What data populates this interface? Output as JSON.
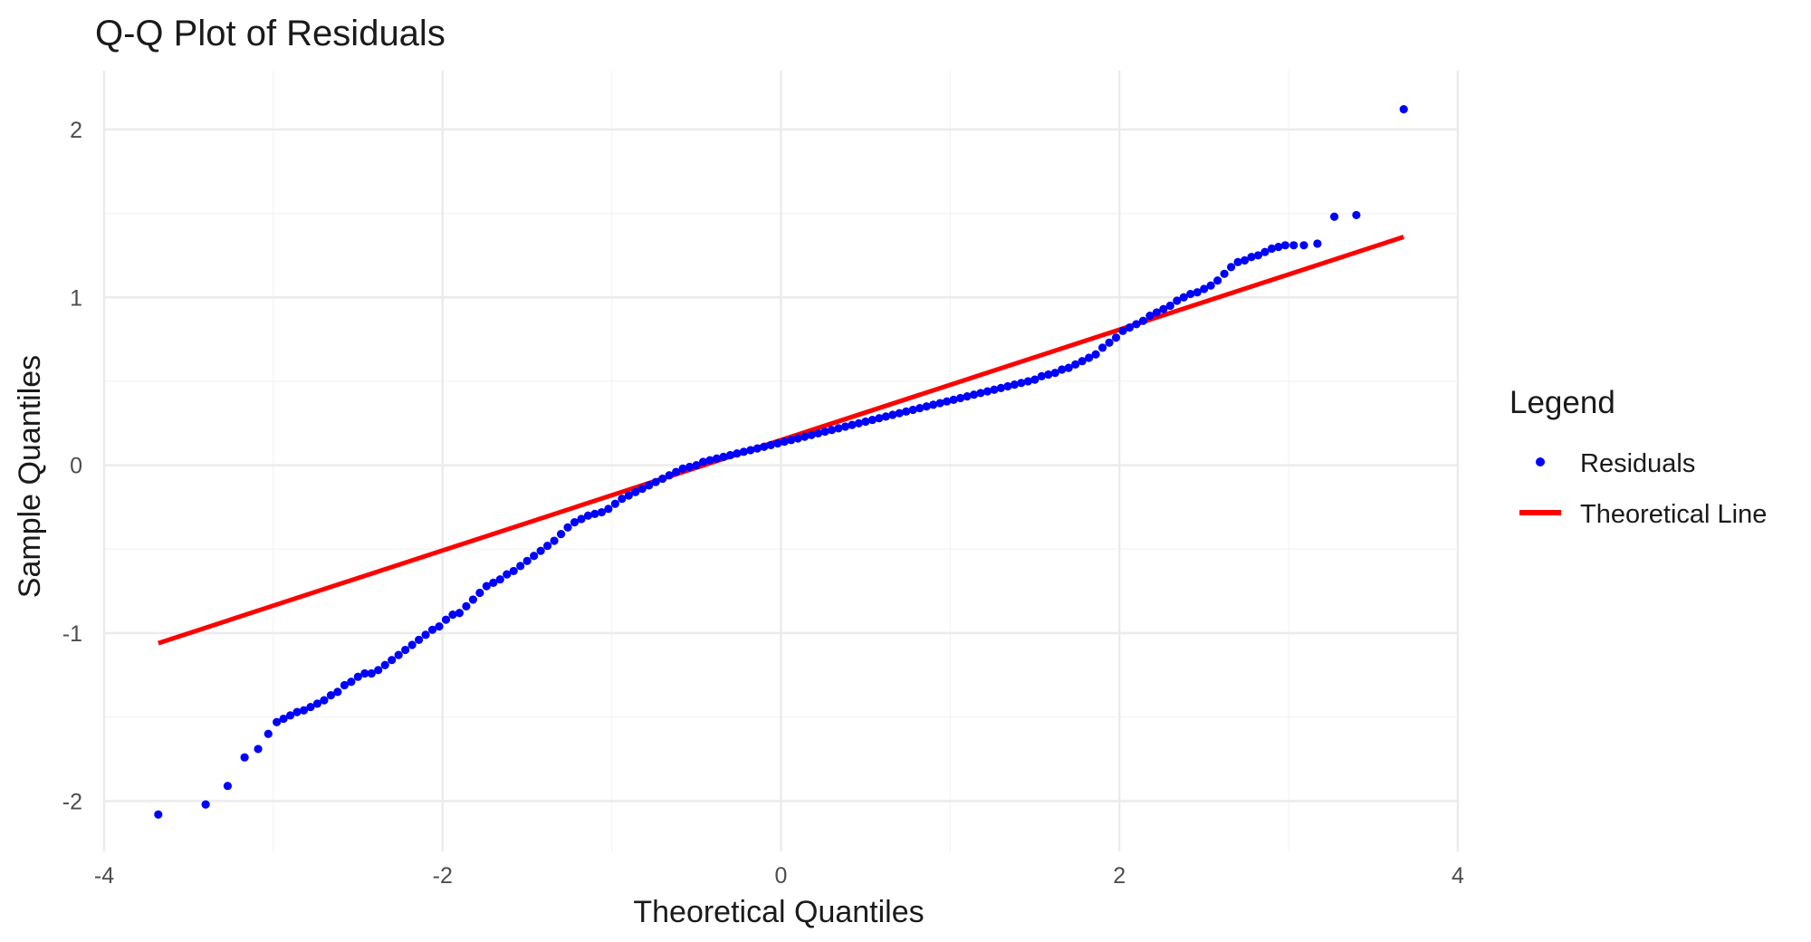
{
  "chart_data": {
    "type": "scatter",
    "title": "Q-Q Plot of Residuals",
    "xlabel": "Theoretical Quantiles",
    "ylabel": "Sample Quantiles",
    "xlim": [
      -4,
      4
    ],
    "ylim": [
      -2.3,
      2.35
    ],
    "x_ticks": [
      -4,
      -2,
      0,
      2,
      4
    ],
    "y_ticks": [
      -2,
      -1,
      0,
      1,
      2
    ],
    "x_tick_labels": [
      "-4",
      "-2",
      "0",
      "2",
      "4"
    ],
    "y_tick_labels": [
      "-2",
      "-1",
      "0",
      "1",
      "2"
    ],
    "grid": true,
    "legend": {
      "title": "Legend",
      "position": "right",
      "entries": [
        {
          "label": "Residuals",
          "kind": "point",
          "color": "#0000ff"
        },
        {
          "label": "Theoretical Line",
          "kind": "line",
          "color": "#ff0000"
        }
      ]
    },
    "series": [
      {
        "name": "Residuals",
        "kind": "points",
        "color": "#0000ff",
        "points": [
          [
            -3.68,
            -2.08
          ],
          [
            -3.4,
            -2.02
          ],
          [
            -3.27,
            -1.91
          ],
          [
            -3.17,
            -1.74
          ],
          [
            -3.09,
            -1.69
          ],
          [
            -3.03,
            -1.6
          ],
          [
            -2.98,
            -1.53
          ],
          [
            -2.94,
            -1.51
          ],
          [
            -2.9,
            -1.49
          ],
          [
            -2.86,
            -1.47
          ],
          [
            -2.82,
            -1.46
          ],
          [
            -2.78,
            -1.44
          ],
          [
            -2.74,
            -1.42
          ],
          [
            -2.7,
            -1.4
          ],
          [
            -2.66,
            -1.37
          ],
          [
            -2.62,
            -1.35
          ],
          [
            -2.58,
            -1.31
          ],
          [
            -2.54,
            -1.29
          ],
          [
            -2.5,
            -1.26
          ],
          [
            -2.46,
            -1.24
          ],
          [
            -2.42,
            -1.24
          ],
          [
            -2.38,
            -1.22
          ],
          [
            -2.34,
            -1.19
          ],
          [
            -2.3,
            -1.16
          ],
          [
            -2.26,
            -1.13
          ],
          [
            -2.22,
            -1.1
          ],
          [
            -2.18,
            -1.07
          ],
          [
            -2.14,
            -1.04
          ],
          [
            -2.1,
            -1.01
          ],
          [
            -2.06,
            -0.98
          ],
          [
            -2.02,
            -0.96
          ],
          [
            -1.98,
            -0.92
          ],
          [
            -1.94,
            -0.89
          ],
          [
            -1.9,
            -0.88
          ],
          [
            -1.86,
            -0.84
          ],
          [
            -1.82,
            -0.8
          ],
          [
            -1.78,
            -0.76
          ],
          [
            -1.74,
            -0.72
          ],
          [
            -1.7,
            -0.7
          ],
          [
            -1.66,
            -0.68
          ],
          [
            -1.62,
            -0.65
          ],
          [
            -1.58,
            -0.63
          ],
          [
            -1.54,
            -0.6
          ],
          [
            -1.5,
            -0.57
          ],
          [
            -1.46,
            -0.54
          ],
          [
            -1.42,
            -0.51
          ],
          [
            -1.38,
            -0.48
          ],
          [
            -1.34,
            -0.45
          ],
          [
            -1.3,
            -0.41
          ],
          [
            -1.26,
            -0.37
          ],
          [
            -1.22,
            -0.34
          ],
          [
            -1.18,
            -0.32
          ],
          [
            -1.14,
            -0.3
          ],
          [
            -1.1,
            -0.29
          ],
          [
            -1.06,
            -0.28
          ],
          [
            -1.02,
            -0.26
          ],
          [
            -0.98,
            -0.23
          ],
          [
            -0.94,
            -0.2
          ],
          [
            -0.9,
            -0.18
          ],
          [
            -0.86,
            -0.16
          ],
          [
            -0.82,
            -0.14
          ],
          [
            -0.78,
            -0.12
          ],
          [
            -0.74,
            -0.1
          ],
          [
            -0.7,
            -0.08
          ],
          [
            -0.66,
            -0.06
          ],
          [
            -0.62,
            -0.04
          ],
          [
            -0.58,
            -0.02
          ],
          [
            -0.54,
            -0.01
          ],
          [
            -0.5,
            0.0
          ],
          [
            -0.46,
            0.02
          ],
          [
            -0.42,
            0.03
          ],
          [
            -0.38,
            0.04
          ],
          [
            -0.34,
            0.05
          ],
          [
            -0.3,
            0.06
          ],
          [
            -0.26,
            0.07
          ],
          [
            -0.22,
            0.08
          ],
          [
            -0.18,
            0.09
          ],
          [
            -0.14,
            0.1
          ],
          [
            -0.1,
            0.11
          ],
          [
            -0.06,
            0.12
          ],
          [
            -0.02,
            0.13
          ],
          [
            0.02,
            0.14
          ],
          [
            0.06,
            0.15
          ],
          [
            0.1,
            0.16
          ],
          [
            0.14,
            0.17
          ],
          [
            0.18,
            0.18
          ],
          [
            0.22,
            0.19
          ],
          [
            0.26,
            0.2
          ],
          [
            0.3,
            0.21
          ],
          [
            0.34,
            0.22
          ],
          [
            0.38,
            0.23
          ],
          [
            0.42,
            0.24
          ],
          [
            0.46,
            0.25
          ],
          [
            0.5,
            0.26
          ],
          [
            0.54,
            0.27
          ],
          [
            0.58,
            0.28
          ],
          [
            0.62,
            0.29
          ],
          [
            0.66,
            0.3
          ],
          [
            0.7,
            0.31
          ],
          [
            0.74,
            0.32
          ],
          [
            0.78,
            0.33
          ],
          [
            0.82,
            0.34
          ],
          [
            0.86,
            0.35
          ],
          [
            0.9,
            0.36
          ],
          [
            0.94,
            0.37
          ],
          [
            0.98,
            0.38
          ],
          [
            1.02,
            0.39
          ],
          [
            1.06,
            0.4
          ],
          [
            1.1,
            0.41
          ],
          [
            1.14,
            0.42
          ],
          [
            1.18,
            0.43
          ],
          [
            1.22,
            0.44
          ],
          [
            1.26,
            0.45
          ],
          [
            1.3,
            0.46
          ],
          [
            1.34,
            0.47
          ],
          [
            1.38,
            0.48
          ],
          [
            1.42,
            0.49
          ],
          [
            1.46,
            0.5
          ],
          [
            1.5,
            0.51
          ],
          [
            1.54,
            0.53
          ],
          [
            1.58,
            0.54
          ],
          [
            1.62,
            0.55
          ],
          [
            1.66,
            0.57
          ],
          [
            1.7,
            0.58
          ],
          [
            1.74,
            0.6
          ],
          [
            1.78,
            0.62
          ],
          [
            1.82,
            0.64
          ],
          [
            1.86,
            0.66
          ],
          [
            1.9,
            0.7
          ],
          [
            1.94,
            0.73
          ],
          [
            1.98,
            0.76
          ],
          [
            2.02,
            0.8
          ],
          [
            2.06,
            0.82
          ],
          [
            2.1,
            0.84
          ],
          [
            2.14,
            0.86
          ],
          [
            2.18,
            0.89
          ],
          [
            2.22,
            0.91
          ],
          [
            2.26,
            0.93
          ],
          [
            2.3,
            0.95
          ],
          [
            2.34,
            0.98
          ],
          [
            2.38,
            1.0
          ],
          [
            2.42,
            1.02
          ],
          [
            2.46,
            1.03
          ],
          [
            2.5,
            1.05
          ],
          [
            2.54,
            1.07
          ],
          [
            2.58,
            1.1
          ],
          [
            2.62,
            1.14
          ],
          [
            2.66,
            1.18
          ],
          [
            2.7,
            1.21
          ],
          [
            2.74,
            1.22
          ],
          [
            2.78,
            1.24
          ],
          [
            2.82,
            1.25
          ],
          [
            2.86,
            1.27
          ],
          [
            2.9,
            1.29
          ],
          [
            2.94,
            1.3
          ],
          [
            2.98,
            1.31
          ],
          [
            3.03,
            1.31
          ],
          [
            3.09,
            1.31
          ],
          [
            3.17,
            1.32
          ],
          [
            3.27,
            1.48
          ],
          [
            3.4,
            1.49
          ],
          [
            3.68,
            2.12
          ]
        ]
      },
      {
        "name": "Theoretical Line",
        "kind": "line",
        "color": "#ff0000",
        "x": [
          -3.68,
          3.68
        ],
        "y": [
          -1.06,
          1.36
        ]
      }
    ]
  }
}
